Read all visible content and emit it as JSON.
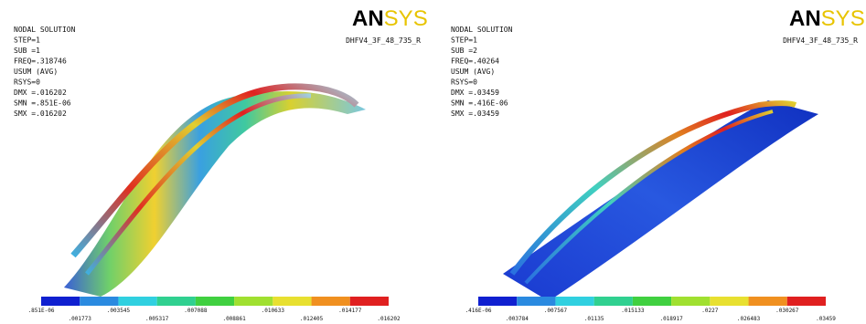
{
  "panels": [
    {
      "header": [
        "NODAL SOLUTION",
        "STEP=1",
        "SUB =1",
        "FREQ=.318746",
        "USUM     (AVG)",
        "RSYS=0",
        "DMX =.016202",
        "SMN =.851E-06",
        "SMX =.016202"
      ],
      "logo_an": "AN",
      "logo_sys": "SYS",
      "model": "DHFV4_3F_48_735_R",
      "legend": [
        ".851E-06",
        ".001773",
        ".003545",
        ".005317",
        ".007088",
        ".008861",
        ".010633",
        ".012405",
        ".014177",
        ".016202"
      ]
    },
    {
      "header": [
        "NODAL SOLUTION",
        "STEP=1",
        "SUB =2",
        "FREQ=.40264",
        "USUM     (AVG)",
        "RSYS=0",
        "DMX =.03459",
        "SMN =.416E-06",
        "SMX =.03459"
      ],
      "logo_an": "AN",
      "logo_sys": "SYS",
      "model": "DHFV4_3F_48_735_R",
      "legend": [
        ".416E-06",
        ".003784",
        ".007567",
        ".01135",
        ".015133",
        ".018917",
        ".0227",
        ".026483",
        ".030267",
        ".03459"
      ]
    }
  ]
}
